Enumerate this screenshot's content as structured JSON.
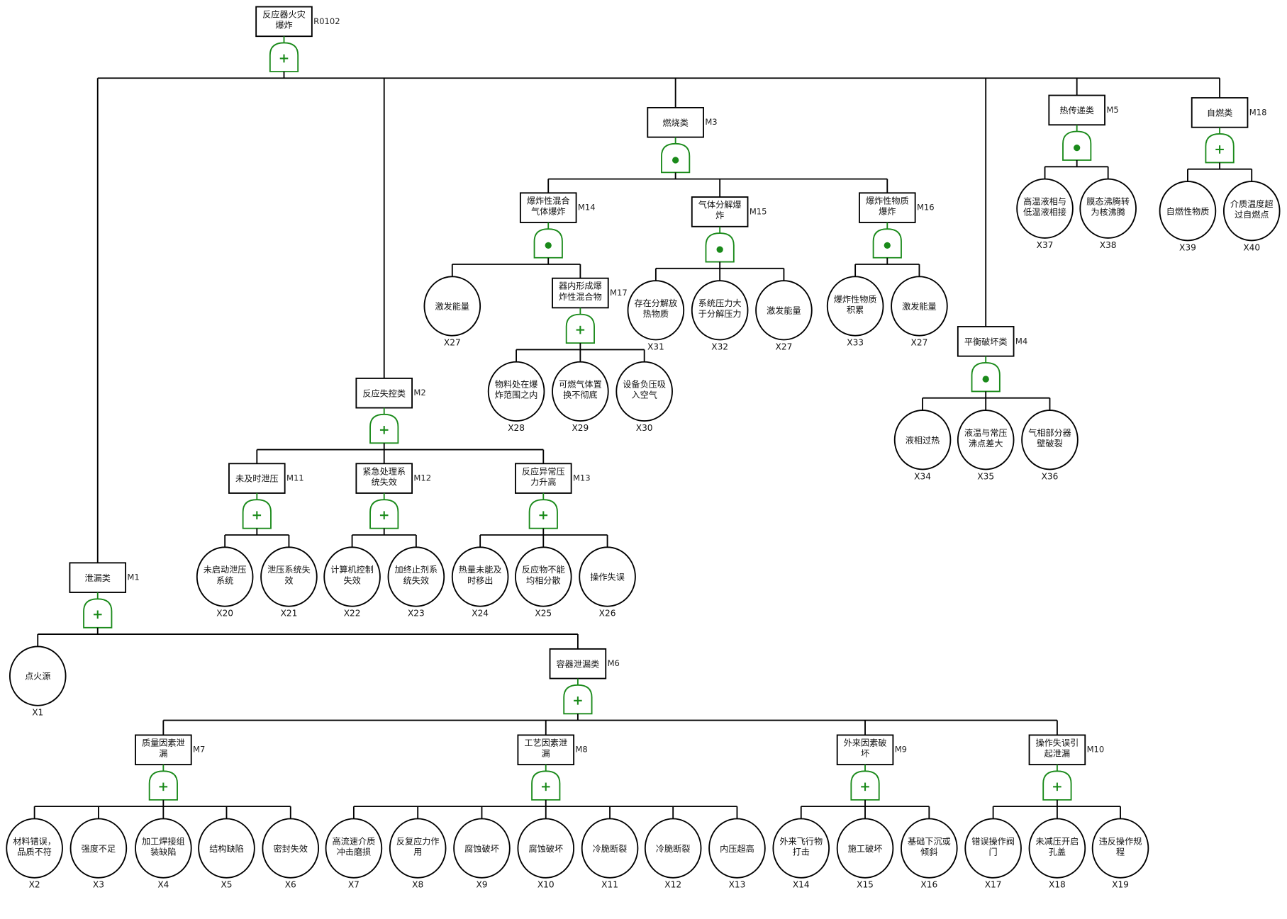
{
  "colors": {
    "gate": "#1a8a1a",
    "line": "#000000"
  },
  "gate_symbols": {
    "or": "+",
    "and": "●"
  },
  "tree": {
    "id": "R0102",
    "label": [
      "反应器火灾",
      "爆炸"
    ],
    "gate": "or",
    "children": [
      {
        "id": "M1",
        "label": [
          "泄漏类"
        ],
        "gate": "or",
        "children": [
          {
            "id": "X1",
            "label": [
              "点火源"
            ]
          },
          {
            "id": "M6",
            "label": [
              "容器泄漏类"
            ],
            "gate": "or",
            "children": [
              {
                "id": "M7",
                "label": [
                  "质量因素泄",
                  "漏"
                ],
                "gate": "or",
                "children": [
                  {
                    "id": "X2",
                    "label": [
                      "材料错误，",
                      "品质不符"
                    ]
                  },
                  {
                    "id": "X3",
                    "label": [
                      "强度不足"
                    ]
                  },
                  {
                    "id": "X4",
                    "label": [
                      "加工焊接组",
                      "装缺陷"
                    ]
                  },
                  {
                    "id": "X5",
                    "label": [
                      "结构缺陷"
                    ]
                  },
                  {
                    "id": "X6",
                    "label": [
                      "密封失效"
                    ]
                  }
                ]
              },
              {
                "id": "M8",
                "label": [
                  "工艺因素泄",
                  "漏"
                ],
                "gate": "or",
                "children": [
                  {
                    "id": "X7",
                    "label": [
                      "高流速介质",
                      "冲击磨损"
                    ]
                  },
                  {
                    "id": "X8",
                    "label": [
                      "反复应力作",
                      "用"
                    ]
                  },
                  {
                    "id": "X9",
                    "label": [
                      "腐蚀破坏"
                    ]
                  },
                  {
                    "id": "X10",
                    "label": [
                      "腐蚀破坏"
                    ]
                  },
                  {
                    "id": "X11",
                    "label": [
                      "冷脆断裂"
                    ]
                  },
                  {
                    "id": "X12",
                    "label": [
                      "冷脆断裂"
                    ]
                  },
                  {
                    "id": "X13",
                    "label": [
                      "内压超高"
                    ]
                  }
                ]
              },
              {
                "id": "M9",
                "label": [
                  "外来因素破",
                  "坏"
                ],
                "gate": "or",
                "children": [
                  {
                    "id": "X14",
                    "label": [
                      "外来飞行物",
                      "打击"
                    ]
                  },
                  {
                    "id": "X15",
                    "label": [
                      "施工破坏"
                    ]
                  },
                  {
                    "id": "X16",
                    "label": [
                      "基础下沉或",
                      "倾斜"
                    ]
                  }
                ]
              },
              {
                "id": "M10",
                "label": [
                  "操作失误引",
                  "起泄漏"
                ],
                "gate": "or",
                "children": [
                  {
                    "id": "X17",
                    "label": [
                      "错误操作阀",
                      "门"
                    ]
                  },
                  {
                    "id": "X18",
                    "label": [
                      "未减压开启",
                      "孔盖"
                    ]
                  },
                  {
                    "id": "X19",
                    "label": [
                      "违反操作规",
                      "程"
                    ]
                  }
                ]
              }
            ]
          }
        ]
      },
      {
        "id": "M2",
        "label": [
          "反应失控类"
        ],
        "gate": "or",
        "children": [
          {
            "id": "M11",
            "label": [
              "未及时泄压"
            ],
            "gate": "or",
            "children": [
              {
                "id": "X20",
                "label": [
                  "未启动泄压",
                  "系统"
                ]
              },
              {
                "id": "X21",
                "label": [
                  "泄压系统失",
                  "效"
                ]
              }
            ]
          },
          {
            "id": "M12",
            "label": [
              "紧急处理系",
              "统失效"
            ],
            "gate": "or",
            "children": [
              {
                "id": "X22",
                "label": [
                  "计算机控制",
                  "失效"
                ]
              },
              {
                "id": "X23",
                "label": [
                  "加终止剂系",
                  "统失效"
                ]
              }
            ]
          },
          {
            "id": "M13",
            "label": [
              "反应异常压",
              "力升高"
            ],
            "gate": "or",
            "children": [
              {
                "id": "X24",
                "label": [
                  "热量未能及",
                  "时移出"
                ]
              },
              {
                "id": "X25",
                "label": [
                  "反应物不能",
                  "均相分散"
                ]
              },
              {
                "id": "X26",
                "label": [
                  "操作失误"
                ]
              }
            ]
          }
        ]
      },
      {
        "id": "M3",
        "label": [
          "燃烧类"
        ],
        "gate": "and",
        "children": [
          {
            "id": "M14",
            "label": [
              "爆炸性混合",
              "气体爆炸"
            ],
            "gate": "and",
            "children": [
              {
                "id": "X27",
                "label": [
                  "激发能量"
                ]
              },
              {
                "id": "M17",
                "label": [
                  "器内形成爆",
                  "炸性混合物"
                ],
                "gate": "or",
                "children": [
                  {
                    "id": "X28",
                    "label": [
                      "物料处在爆",
                      "炸范围之内"
                    ]
                  },
                  {
                    "id": "X29",
                    "label": [
                      "可燃气体置",
                      "换不彻底"
                    ]
                  },
                  {
                    "id": "X30",
                    "label": [
                      "设备负压吸",
                      "入空气"
                    ]
                  }
                ]
              }
            ]
          },
          {
            "id": "M15",
            "label": [
              "气体分解爆",
              "炸"
            ],
            "gate": "and",
            "children": [
              {
                "id": "X31",
                "label": [
                  "存在分解放",
                  "热物质"
                ]
              },
              {
                "id": "X32",
                "label": [
                  "系统压力大",
                  "于分解压力"
                ]
              },
              {
                "id": "X27",
                "label": [
                  "激发能量"
                ]
              }
            ]
          },
          {
            "id": "M16",
            "label": [
              "爆炸性物质",
              "爆炸"
            ],
            "gate": "and",
            "children": [
              {
                "id": "X33",
                "label": [
                  "爆炸性物质",
                  "积累"
                ]
              },
              {
                "id": "X27",
                "label": [
                  "激发能量"
                ]
              }
            ]
          }
        ]
      },
      {
        "id": "M4",
        "label": [
          "平衡破坏类"
        ],
        "gate": "and",
        "children": [
          {
            "id": "X34",
            "label": [
              "液相过热"
            ]
          },
          {
            "id": "X35",
            "label": [
              "液温与常压",
              "沸点差大"
            ]
          },
          {
            "id": "X36",
            "label": [
              "气相部分器",
              "壁破裂"
            ]
          }
        ]
      },
      {
        "id": "M5",
        "label": [
          "热传递类"
        ],
        "gate": "and",
        "children": [
          {
            "id": "X37",
            "label": [
              "高温液相与",
              "低温液相接"
            ]
          },
          {
            "id": "X38",
            "label": [
              "膜态沸腾转",
              "为核沸腾"
            ]
          }
        ]
      },
      {
        "id": "M18",
        "label": [
          "自燃类"
        ],
        "gate": "or",
        "children": [
          {
            "id": "X39",
            "label": [
              "自燃性物质"
            ]
          },
          {
            "id": "X40",
            "label": [
              "介质温度超",
              "过自燃点"
            ]
          }
        ]
      }
    ]
  }
}
